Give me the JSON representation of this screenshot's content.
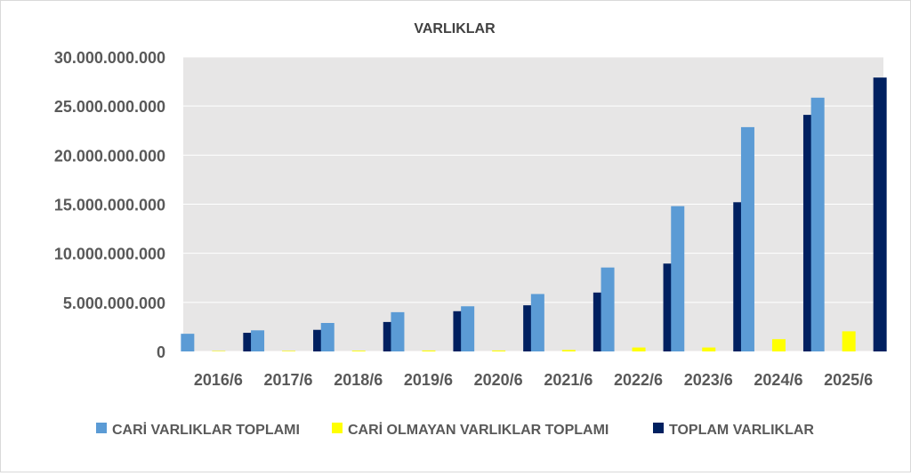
{
  "chart_data": {
    "type": "bar",
    "title": "VARLIKLAR",
    "xlabel": "",
    "ylabel": "",
    "ylim": [
      0,
      30000000000
    ],
    "ytick_values": [
      0,
      5000000000,
      10000000000,
      15000000000,
      20000000000,
      25000000000,
      30000000000
    ],
    "ytick_labels": [
      "0",
      "5.000.000.000",
      "10.000.000.000",
      "15.000.000.000",
      "20.000.000.000",
      "25.000.000.000",
      "30.000.000.000"
    ],
    "categories": [
      "2016/6",
      "2017/6",
      "2018/6",
      "2019/6",
      "2020/6",
      "2021/6",
      "2022/6",
      "2023/6",
      "2024/6",
      "2025/6"
    ],
    "series": [
      {
        "name": "CARİ VARLIKLAR TOPLAMI",
        "color": "#5b9bd5",
        "values": [
          1800000000,
          2150000000,
          2900000000,
          4000000000,
          4600000000,
          5850000000,
          8550000000,
          14800000000,
          22850000000,
          25850000000
        ]
      },
      {
        "name": "CARİ OLMAYAN VARLIKLAR TOPLAMI",
        "color": "#ffff00",
        "values": [
          50000000,
          60000000,
          80000000,
          100000000,
          100000000,
          150000000,
          400000000,
          400000000,
          1250000000,
          2050000000
        ]
      },
      {
        "name": "TOPLAM VARLIKLAR",
        "color": "#002060",
        "values": [
          1900000000,
          2200000000,
          3000000000,
          4100000000,
          4700000000,
          6000000000,
          8950000000,
          15200000000,
          24100000000,
          27900000000
        ]
      }
    ],
    "grid": true,
    "plot_background": "#e7e6e6",
    "legend_position": "bottom"
  }
}
